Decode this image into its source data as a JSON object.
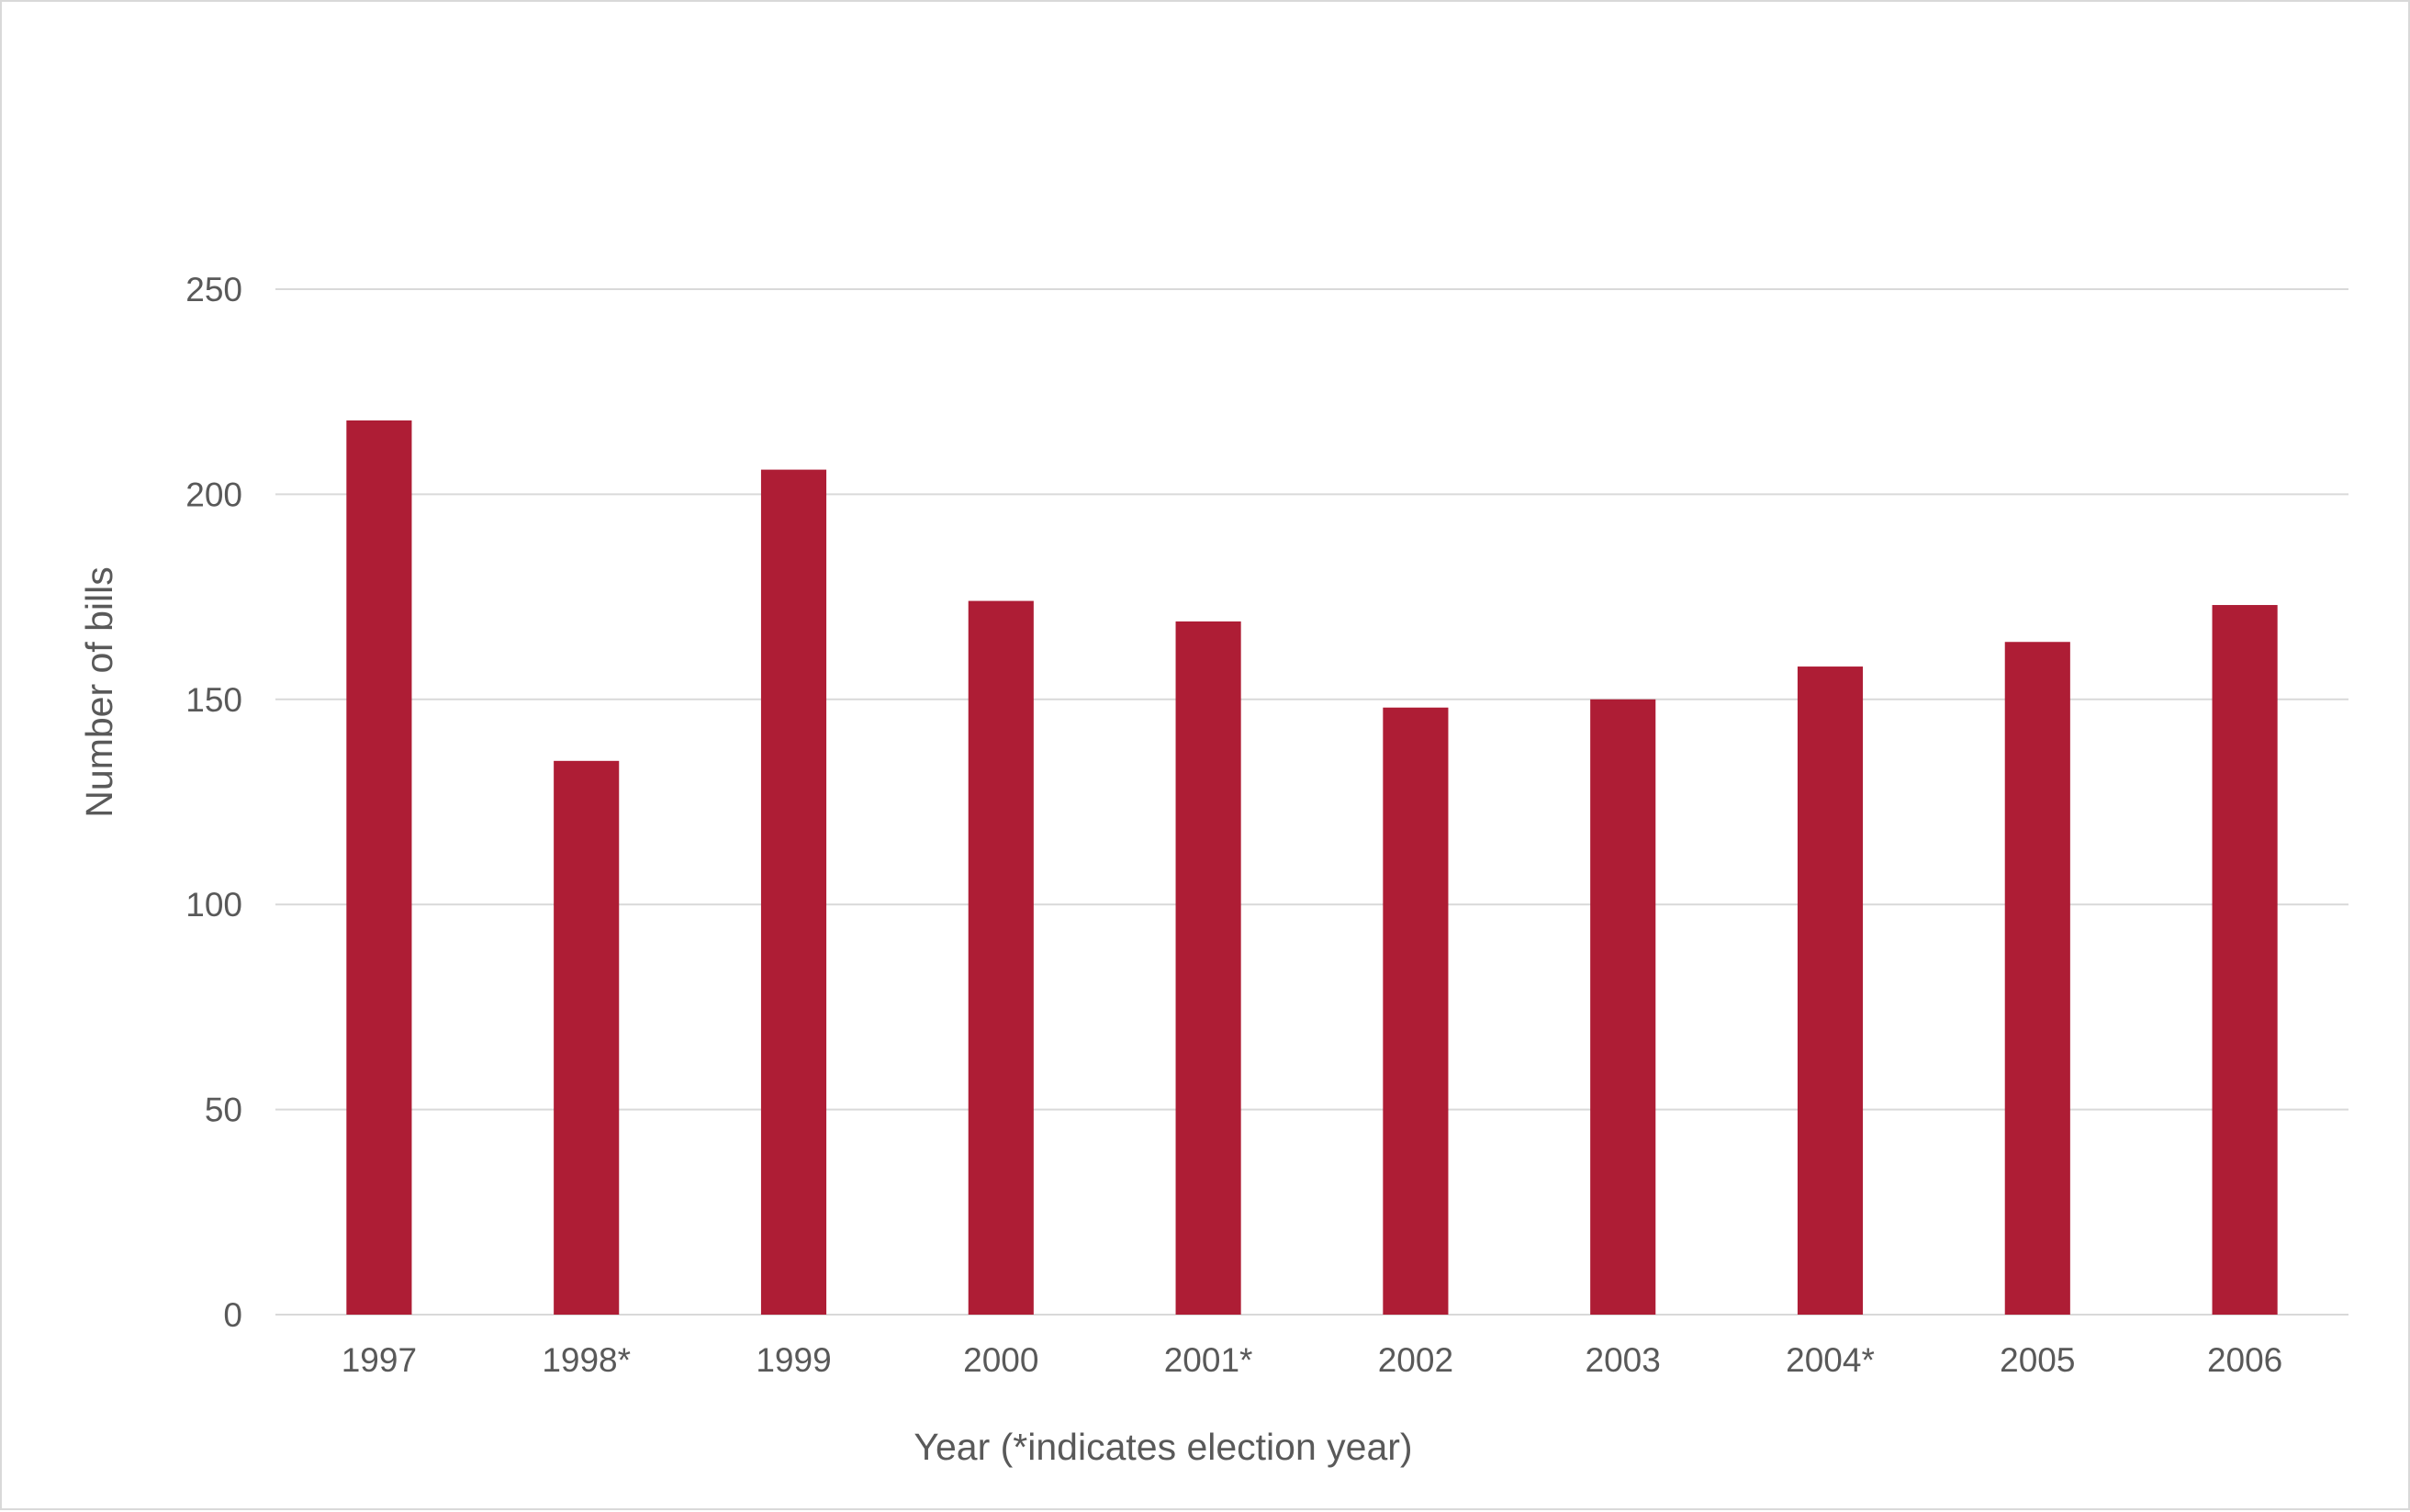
{
  "chart_data": {
    "type": "bar",
    "title": "",
    "xlabel": "Year (*indicates election year)",
    "ylabel": "Number of bills",
    "categories": [
      "1997",
      "1998*",
      "1999",
      "2000",
      "2001*",
      "2002",
      "2003",
      "2004*",
      "2005",
      "2006"
    ],
    "values": [
      218,
      135,
      206,
      174,
      169,
      148,
      150,
      158,
      164,
      173
    ],
    "ylim": [
      0,
      250
    ],
    "yticks": [
      0,
      50,
      100,
      150,
      200,
      250
    ],
    "grid": true,
    "legend": "none",
    "bar_color": "#ae1d35",
    "grid_color": "#d9d9d9"
  }
}
